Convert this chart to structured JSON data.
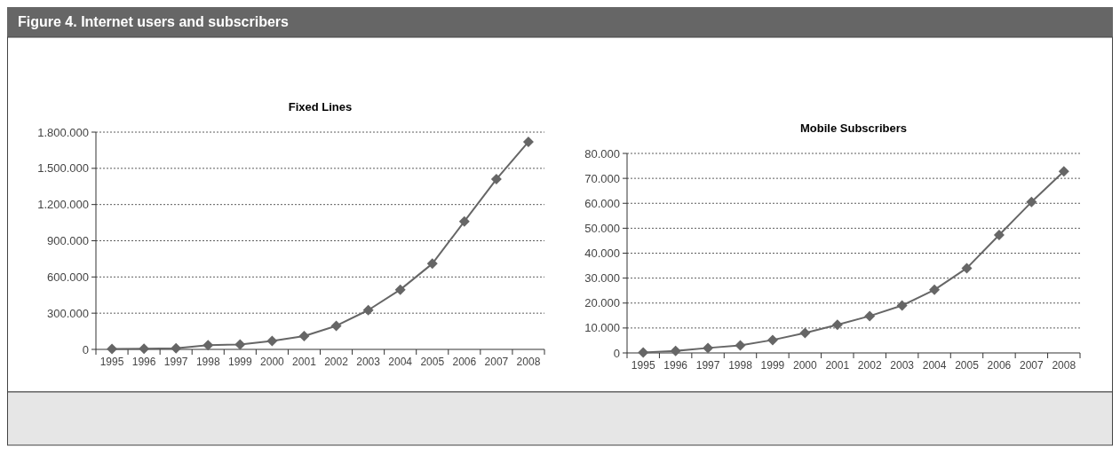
{
  "chart_data": [
    {
      "type": "line",
      "title": "Fixed Lines",
      "annotations": [
        "Figure 4. Internet users and subscribers"
      ],
      "categories": [
        "1995",
        "1996",
        "1997",
        "1998",
        "1999",
        "2000",
        "2001",
        "2002",
        "2003",
        "2004",
        "2005",
        "2006",
        "2007",
        "2008"
      ],
      "series": [
        {
          "color": "#666666",
          "values": [
            3000,
            5000,
            10000,
            35000,
            40000,
            70000,
            110000,
            195000,
            325000,
            495000,
            710000,
            1060000,
            1410000,
            1720000
          ]
        }
      ],
      "ylim": [
        0,
        1800000
      ],
      "yticks": [
        {
          "value": 0,
          "label": "0"
        },
        {
          "value": 300000,
          "label": "300.000"
        },
        {
          "value": 600000,
          "label": "600.000"
        },
        {
          "value": 900000,
          "label": "900.000"
        },
        {
          "value": 1200000,
          "label": "1.200.000"
        },
        {
          "value": 1500000,
          "label": "1.500.000"
        },
        {
          "value": 1800000,
          "label": "1.800.000"
        }
      ],
      "grid": "y",
      "marker": "diamond",
      "line_style": "solid"
    },
    {
      "type": "line",
      "title": "Mobile Subscribers",
      "categories": [
        "1995",
        "1996",
        "1997",
        "1998",
        "1999",
        "2000",
        "2001",
        "2002",
        "2003",
        "2004",
        "2005",
        "2006",
        "2007",
        "2008"
      ],
      "series": [
        {
          "color": "#666666",
          "values": [
            200,
            800,
            2000,
            3000,
            5200,
            8000,
            11300,
            14800,
            19000,
            25300,
            34000,
            47300,
            60500,
            72800
          ]
        }
      ],
      "ylim": [
        0,
        80000
      ],
      "yticks": [
        {
          "value": 0,
          "label": "0"
        },
        {
          "value": 10000,
          "label": "10.000"
        },
        {
          "value": 20000,
          "label": "20.000"
        },
        {
          "value": 30000,
          "label": "30.000"
        },
        {
          "value": 40000,
          "label": "40.000"
        },
        {
          "value": 50000,
          "label": "50.000"
        },
        {
          "value": 60000,
          "label": "60.000"
        },
        {
          "value": 70000,
          "label": "70.000"
        },
        {
          "value": 80000,
          "label": "80.000"
        }
      ],
      "grid": "y",
      "marker": "diamond",
      "line_style": "solid"
    }
  ]
}
